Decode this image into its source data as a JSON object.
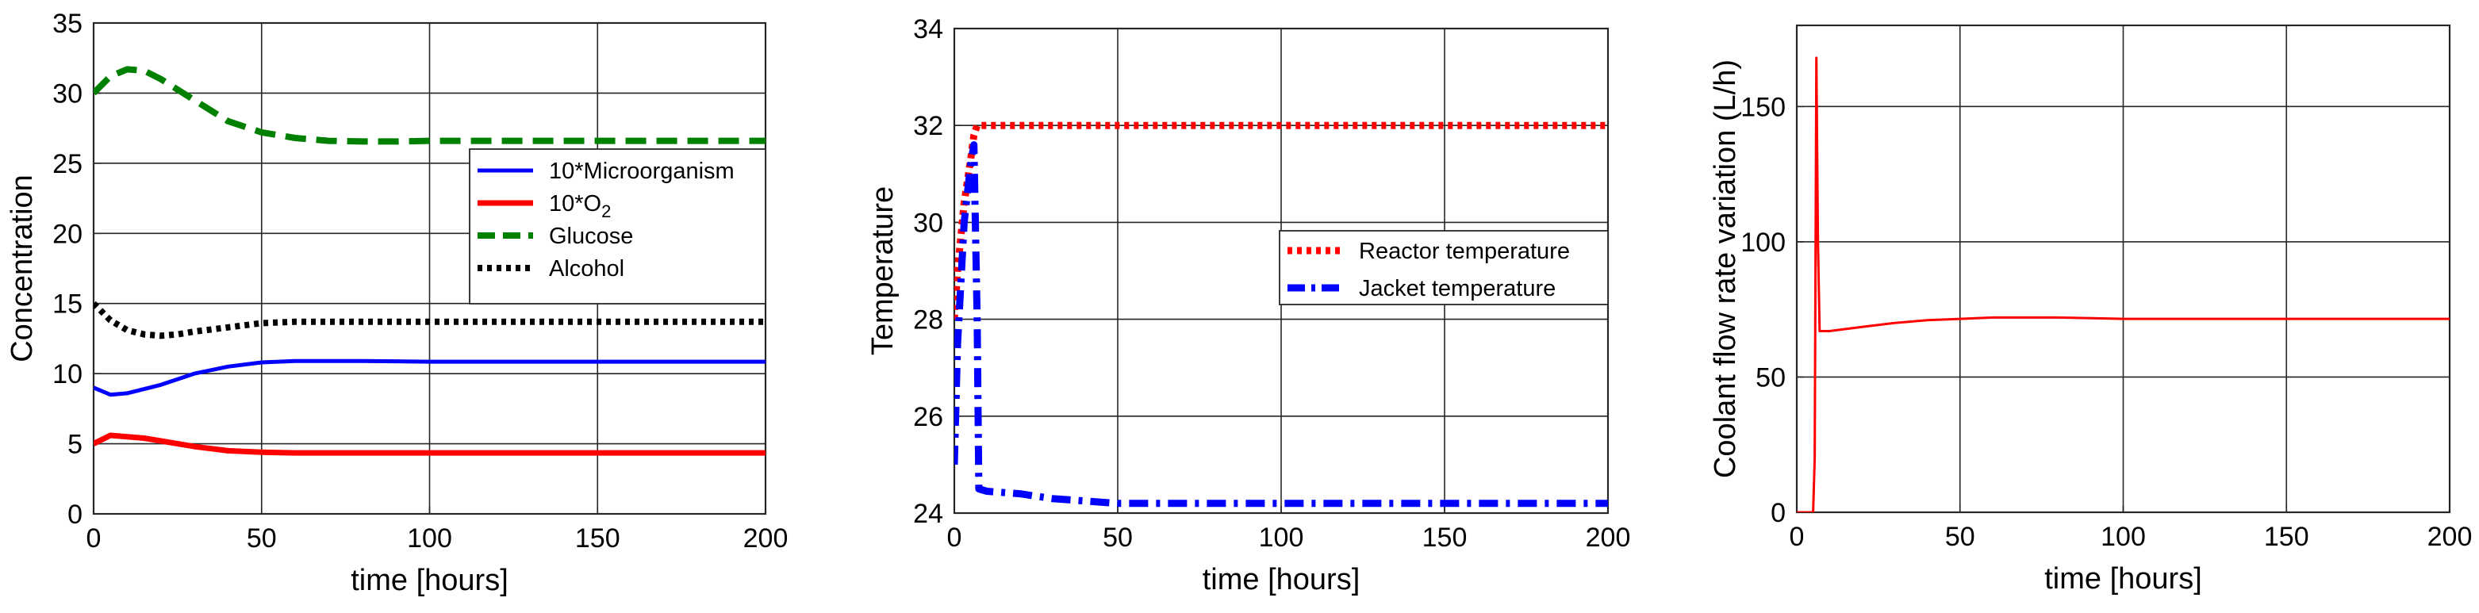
{
  "chart_data": [
    {
      "type": "line",
      "xlabel": "time [hours]",
      "ylabel": "Concentration",
      "xlim": [
        0,
        200
      ],
      "ylim": [
        0,
        35
      ],
      "xticks": [
        0,
        50,
        100,
        150,
        200
      ],
      "yticks": [
        0,
        5,
        10,
        15,
        20,
        25,
        30,
        35
      ],
      "grid": true,
      "legend_position": "top-right",
      "series": [
        {
          "name": "10*Microorganism",
          "name_subscript": "",
          "color": "#0000ff",
          "style": "solid",
          "x": [
            0,
            5,
            10,
            20,
            30,
            40,
            50,
            60,
            70,
            80,
            100,
            120,
            150,
            200
          ],
          "y": [
            9.0,
            8.5,
            8.6,
            9.2,
            10.0,
            10.5,
            10.8,
            10.9,
            10.9,
            10.9,
            10.85,
            10.85,
            10.85,
            10.85
          ]
        },
        {
          "name": "10*O",
          "name_subscript": "2",
          "color": "#ff0000",
          "style": "solid",
          "x": [
            0,
            5,
            10,
            15,
            20,
            30,
            40,
            50,
            60,
            70,
            80,
            100,
            150,
            200
          ],
          "y": [
            5.0,
            5.6,
            5.5,
            5.4,
            5.2,
            4.8,
            4.5,
            4.4,
            4.35,
            4.35,
            4.35,
            4.35,
            4.35,
            4.35
          ]
        },
        {
          "name": "Glucose",
          "name_subscript": "",
          "color": "#008000",
          "style": "dashed",
          "x": [
            0,
            5,
            10,
            15,
            20,
            30,
            40,
            50,
            60,
            70,
            80,
            90,
            100,
            120,
            150,
            200
          ],
          "y": [
            30.0,
            31.2,
            31.7,
            31.6,
            31.0,
            29.5,
            28.0,
            27.2,
            26.8,
            26.6,
            26.55,
            26.55,
            26.6,
            26.6,
            26.6,
            26.6
          ]
        },
        {
          "name": "Alcohol",
          "name_subscript": "",
          "color": "#000000",
          "style": "dotted",
          "x": [
            0,
            5,
            10,
            15,
            20,
            25,
            30,
            40,
            50,
            60,
            80,
            100,
            150,
            200
          ],
          "y": [
            15.0,
            13.8,
            13.1,
            12.8,
            12.7,
            12.8,
            13.0,
            13.3,
            13.6,
            13.7,
            13.7,
            13.7,
            13.7,
            13.7
          ]
        }
      ]
    },
    {
      "type": "line",
      "xlabel": "time [hours]",
      "ylabel": "Temperature",
      "xlim": [
        0,
        200
      ],
      "ylim": [
        24,
        34
      ],
      "xticks": [
        0,
        50,
        100,
        150,
        200
      ],
      "yticks": [
        24,
        26,
        28,
        30,
        32,
        34
      ],
      "grid": true,
      "legend_position": "right",
      "series": [
        {
          "name": "Reactor temperature",
          "color": "#ff0000",
          "style": "dotted",
          "x": [
            0,
            1,
            3,
            5,
            6,
            7,
            100,
            200
          ],
          "y": [
            28.0,
            29.0,
            30.4,
            31.3,
            31.8,
            32.0,
            32.0,
            32.0
          ]
        },
        {
          "name": "Jacket temperature",
          "color": "#0000ff",
          "style": "dashdot",
          "x": [
            0,
            1,
            3,
            5,
            6,
            7,
            7.5,
            10,
            20,
            30,
            40,
            50,
            60,
            80,
            100,
            150,
            200
          ],
          "y": [
            25.0,
            27.5,
            30.0,
            31.2,
            31.6,
            28.0,
            24.5,
            24.45,
            24.4,
            24.3,
            24.25,
            24.2,
            24.2,
            24.2,
            24.2,
            24.2,
            24.2
          ]
        }
      ]
    },
    {
      "type": "line",
      "xlabel": "time [hours]",
      "ylabel": "Coolant flow rate variation  (L/h)",
      "xlim": [
        0,
        200
      ],
      "ylim": [
        0,
        180
      ],
      "xticks": [
        0,
        50,
        100,
        150,
        200
      ],
      "yticks": [
        0,
        50,
        100,
        150
      ],
      "grid": true,
      "series": [
        {
          "name": "",
          "color": "#ff0000",
          "style": "solid",
          "x": [
            0,
            5,
            5.5,
            6,
            6.5,
            7,
            7.5,
            10,
            20,
            30,
            40,
            50,
            60,
            80,
            100,
            150,
            200
          ],
          "y": [
            0,
            0,
            20,
            168,
            100,
            67,
            67,
            67,
            68.5,
            70,
            71,
            71.5,
            72,
            72,
            71.5,
            71.5,
            71.5
          ]
        }
      ]
    }
  ]
}
